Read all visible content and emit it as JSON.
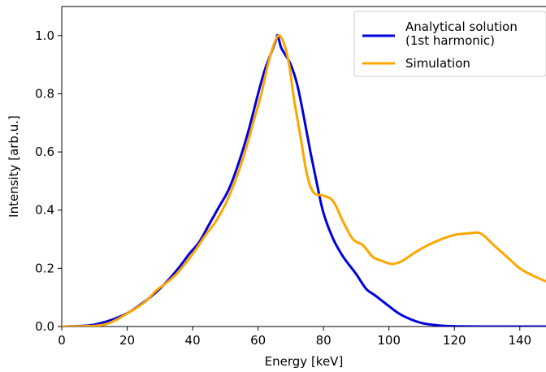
{
  "chart_data": {
    "type": "line",
    "title": "",
    "xlabel": "Energy [keV]",
    "ylabel": "Intensity [arb.u.]",
    "xlim": [
      0,
      148
    ],
    "ylim": [
      0,
      1.1
    ],
    "xticks": [
      0,
      20,
      40,
      60,
      80,
      100,
      120,
      140
    ],
    "yticks": [
      0.0,
      0.2,
      0.4,
      0.6,
      0.8,
      1.0
    ],
    "xtick_labels": [
      "0",
      "20",
      "40",
      "60",
      "80",
      "100",
      "120",
      "140"
    ],
    "ytick_labels": [
      "0.0",
      "0.2",
      "0.4",
      "0.6",
      "0.8",
      "1.0"
    ],
    "grid": false,
    "legend_position": "top-right",
    "series": [
      {
        "name": "Analytical solution",
        "name_line2": "(1st harmonic)",
        "color": "#0000dd",
        "points": [
          [
            0,
            0
          ],
          [
            8,
            0.003
          ],
          [
            12,
            0.012
          ],
          [
            15,
            0.022
          ],
          [
            18,
            0.035
          ],
          [
            21,
            0.052
          ],
          [
            24,
            0.075
          ],
          [
            27,
            0.1
          ],
          [
            30,
            0.13
          ],
          [
            33,
            0.165
          ],
          [
            36,
            0.205
          ],
          [
            39,
            0.25
          ],
          [
            42,
            0.29
          ],
          [
            45,
            0.35
          ],
          [
            48,
            0.41
          ],
          [
            51,
            0.47
          ],
          [
            54,
            0.56
          ],
          [
            57,
            0.67
          ],
          [
            60,
            0.8
          ],
          [
            62,
            0.88
          ],
          [
            64,
            0.94
          ],
          [
            65.5,
            0.985
          ],
          [
            66,
            1.0
          ],
          [
            67,
            0.96
          ],
          [
            68,
            0.94
          ],
          [
            70,
            0.9
          ],
          [
            72,
            0.83
          ],
          [
            74,
            0.72
          ],
          [
            76,
            0.6
          ],
          [
            78,
            0.49
          ],
          [
            80,
            0.39
          ],
          [
            83,
            0.3
          ],
          [
            86,
            0.24
          ],
          [
            90,
            0.18
          ],
          [
            93,
            0.13
          ],
          [
            96,
            0.105
          ],
          [
            100,
            0.07
          ],
          [
            103,
            0.045
          ],
          [
            106,
            0.028
          ],
          [
            110,
            0.012
          ],
          [
            115,
            0.004
          ],
          [
            120,
            0.001
          ],
          [
            130,
            0.0
          ],
          [
            148,
            0.0
          ]
        ]
      },
      {
        "name": "Simulation",
        "color": "#ffa500",
        "points": [
          [
            0,
            0
          ],
          [
            10,
            0.002
          ],
          [
            14,
            0.01
          ],
          [
            17,
            0.025
          ],
          [
            20,
            0.045
          ],
          [
            23,
            0.065
          ],
          [
            26,
            0.09
          ],
          [
            29,
            0.125
          ],
          [
            32,
            0.15
          ],
          [
            35,
            0.18
          ],
          [
            38,
            0.22
          ],
          [
            41,
            0.265
          ],
          [
            44,
            0.315
          ],
          [
            47,
            0.36
          ],
          [
            50,
            0.42
          ],
          [
            53,
            0.5
          ],
          [
            56,
            0.6
          ],
          [
            59,
            0.72
          ],
          [
            61,
            0.8
          ],
          [
            63,
            0.9
          ],
          [
            65,
            0.975
          ],
          [
            66.5,
            1.0
          ],
          [
            68,
            0.97
          ],
          [
            69.5,
            0.9
          ],
          [
            71,
            0.78
          ],
          [
            73,
            0.65
          ],
          [
            75,
            0.52
          ],
          [
            77,
            0.46
          ],
          [
            80,
            0.45
          ],
          [
            83,
            0.43
          ],
          [
            86,
            0.36
          ],
          [
            89,
            0.3
          ],
          [
            92,
            0.28
          ],
          [
            95,
            0.24
          ],
          [
            98,
            0.225
          ],
          [
            101,
            0.215
          ],
          [
            104,
            0.225
          ],
          [
            108,
            0.255
          ],
          [
            112,
            0.28
          ],
          [
            116,
            0.3
          ],
          [
            120,
            0.315
          ],
          [
            124,
            0.32
          ],
          [
            128,
            0.32
          ],
          [
            132,
            0.28
          ],
          [
            136,
            0.24
          ],
          [
            140,
            0.2
          ],
          [
            144,
            0.175
          ],
          [
            148,
            0.155
          ]
        ]
      }
    ]
  }
}
